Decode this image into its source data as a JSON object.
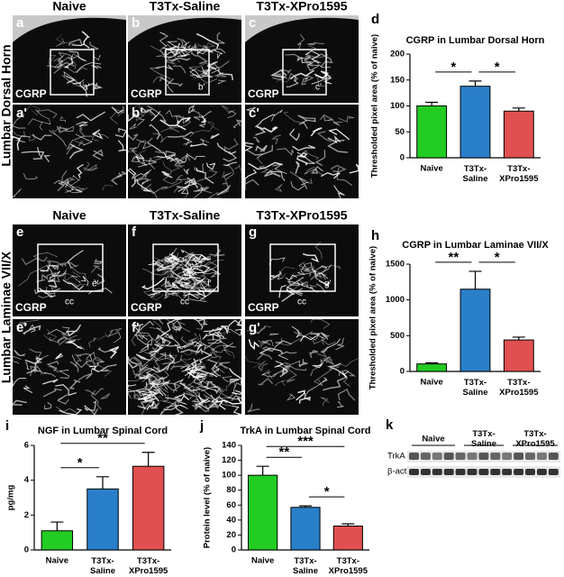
{
  "micrographs": [
    {
      "row_label": "Lumbar Dorsal Horn",
      "column_titles": [
        "Naive",
        "T3Tx-Saline",
        "T3Tx-XPro1595"
      ],
      "panels": [
        {
          "letter": "a",
          "stain": "CGRP",
          "inset": "a'"
        },
        {
          "letter": "b",
          "stain": "CGRP",
          "inset": "b'"
        },
        {
          "letter": "c",
          "stain": "CGRP",
          "inset": "c'"
        }
      ],
      "zoom_panels": [
        "a'",
        "b'",
        "c'"
      ]
    },
    {
      "row_label": "Lumbar Laminae VII/X",
      "column_titles": [
        "Naive",
        "T3Tx-Saline",
        "T3Tx-XPro1595"
      ],
      "panels": [
        {
          "letter": "e",
          "stain": "CGRP",
          "inset": "e'",
          "landmark": "cc"
        },
        {
          "letter": "f",
          "stain": "CGRP",
          "inset": "f'",
          "landmark": "cc"
        },
        {
          "letter": "g",
          "stain": "CGRP",
          "inset": "g'",
          "landmark": "cc"
        }
      ],
      "zoom_panels": [
        "e'",
        "f'",
        "g'"
      ]
    }
  ],
  "chart_data": [
    {
      "type": "bar",
      "panel": "d",
      "title": "CGRP in Lumbar Dorsal Horn",
      "ylabel": "Thresholded pixel area (% of naive)",
      "categories": [
        "Naive",
        "T3Tx-Saline",
        "T3Tx-XPro1595"
      ],
      "values": [
        100,
        138,
        90
      ],
      "error": [
        7,
        10,
        6
      ],
      "colors": [
        "#22cc22",
        "#2a7fc9",
        "#e05050"
      ],
      "ylim": [
        0,
        200
      ],
      "yticks": [
        0,
        50,
        100,
        150,
        200
      ],
      "significance": [
        {
          "pair": [
            "Naive",
            "T3Tx-Saline"
          ],
          "label": "*"
        },
        {
          "pair": [
            "T3Tx-Saline",
            "T3Tx-XPro1595"
          ],
          "label": "*"
        }
      ]
    },
    {
      "type": "bar",
      "panel": "h",
      "title": "CGRP in Lumbar Laminae VII/X",
      "ylabel": "Thresholded pixel area (% of naive)",
      "categories": [
        "Naive",
        "T3Tx-Saline",
        "T3Tx-XPro1595"
      ],
      "values": [
        105,
        1150,
        440
      ],
      "error": [
        15,
        250,
        40
      ],
      "colors": [
        "#22cc22",
        "#2a7fc9",
        "#e05050"
      ],
      "ylim": [
        0,
        1500
      ],
      "yticks": [
        0,
        500,
        1000,
        1500
      ],
      "significance": [
        {
          "pair": [
            "Naive",
            "T3Tx-Saline"
          ],
          "label": "**"
        },
        {
          "pair": [
            "T3Tx-Saline",
            "T3Tx-XPro1595"
          ],
          "label": "*"
        }
      ]
    },
    {
      "type": "bar",
      "panel": "i",
      "title": "NGF in Lumbar Spinal Cord",
      "ylabel": "pg/mg",
      "categories": [
        "Naive",
        "T3Tx-Saline",
        "T3Tx-XPro1595"
      ],
      "values": [
        1.1,
        3.5,
        4.8
      ],
      "error": [
        0.5,
        0.7,
        0.8
      ],
      "colors": [
        "#22cc22",
        "#2a7fc9",
        "#e05050"
      ],
      "ylim": [
        0,
        6
      ],
      "yticks": [
        0,
        2,
        4,
        6
      ],
      "significance": [
        {
          "pair": [
            "Naive",
            "T3Tx-Saline"
          ],
          "label": "*"
        },
        {
          "pair": [
            "Naive",
            "T3Tx-XPro1595"
          ],
          "label": "**"
        }
      ]
    },
    {
      "type": "bar",
      "panel": "j",
      "title": "TrkA in Lumbar Spinal Cord",
      "ylabel": "Protein level (% of naive)",
      "categories": [
        "Naive",
        "T3Tx-Saline",
        "T3Tx-XPro1595"
      ],
      "values": [
        100,
        57,
        32
      ],
      "error": [
        12,
        2,
        3
      ],
      "colors": [
        "#22cc22",
        "#2a7fc9",
        "#e05050"
      ],
      "ylim": [
        0,
        140
      ],
      "yticks": [
        0,
        20,
        40,
        60,
        80,
        100,
        120,
        140
      ],
      "significance": [
        {
          "pair": [
            "Naive",
            "T3Tx-Saline"
          ],
          "label": "**"
        },
        {
          "pair": [
            "Naive",
            "T3Tx-XPro1595"
          ],
          "label": "***"
        },
        {
          "pair": [
            "T3Tx-Saline",
            "T3Tx-XPro1595"
          ],
          "label": "*"
        }
      ]
    }
  ],
  "blot": {
    "panel": "k",
    "groups": [
      "Naive",
      "T3Tx-Saline",
      "T3Tx-XPro1595"
    ],
    "rows": [
      "TrkA",
      "β-actin"
    ]
  }
}
